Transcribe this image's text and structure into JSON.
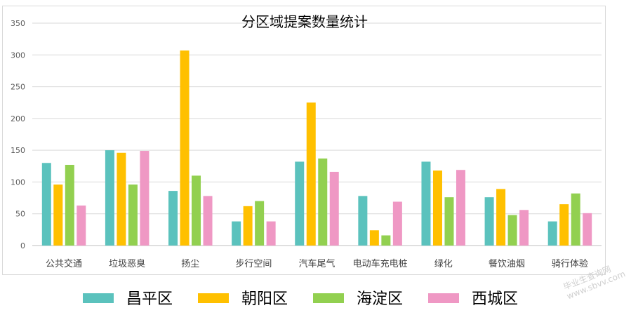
{
  "chart_data": {
    "type": "bar",
    "title": "分区域提案数量统计",
    "categories": [
      "公共交通",
      "垃圾恶臭",
      "扬尘",
      "步行空间",
      "汽车尾气",
      "电动车充电桩",
      "绿化",
      "餐饮油烟",
      "骑行体验"
    ],
    "series": [
      {
        "name": "昌平区",
        "color": "#5bc2bd",
        "values": [
          130,
          150,
          86,
          38,
          132,
          78,
          132,
          76,
          38
        ]
      },
      {
        "name": "朝阳区",
        "color": "#ffc000",
        "values": [
          96,
          146,
          307,
          62,
          225,
          24,
          118,
          89,
          65
        ]
      },
      {
        "name": "海淀区",
        "color": "#92d050",
        "values": [
          127,
          96,
          110,
          70,
          137,
          16,
          76,
          48,
          82
        ]
      },
      {
        "name": "西城区",
        "color": "#ef98c4",
        "values": [
          63,
          149,
          78,
          38,
          116,
          69,
          119,
          56,
          51
        ]
      }
    ],
    "ylim": [
      0,
      350
    ],
    "yticks": [
      0,
      50,
      100,
      150,
      200,
      250,
      300,
      350
    ],
    "grid": true,
    "legend_position": "bottom"
  },
  "watermark": {
    "line1": "毕业生查询网",
    "line2": "www.sbvv.com"
  }
}
